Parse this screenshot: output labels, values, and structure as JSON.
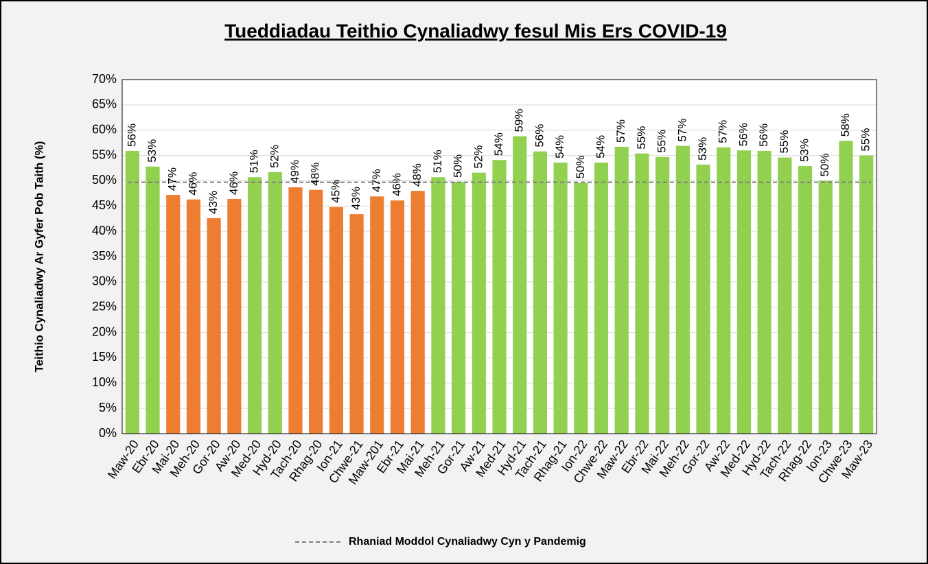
{
  "chart_data": {
    "type": "bar",
    "title": "Tueddiadau Teithio Cynaliadwy fesul Mis Ers COVID-19",
    "y_axis_label": "Teithio Cynaliadwy Ar Gyfer Pob Taith (%)",
    "categories": [
      "Maw-20",
      "Ebr-20",
      "Mai-20",
      "Meh-20",
      "Gor-20",
      "Aw-20",
      "Med-20",
      "Hyd-20",
      "Tach-20",
      "Rhag-20",
      "Ion-21",
      "Chwe-21",
      "Maw-201",
      "Ebr-21",
      "Mai-21",
      "Meh-21",
      "Gor-21",
      "Aw-21",
      "Med-21",
      "Hyd-21",
      "Tach-21",
      "Rhag-21",
      "Ion-22",
      "Chwe-22",
      "Maw-22",
      "Ebr-22",
      "Mai-22",
      "Meh-22",
      "Gor-22",
      "Aw-22",
      "Med-22",
      "Hyd-22",
      "Tach-22",
      "Rhag-22",
      "Ion-23",
      "Chwe-23",
      "Maw-23"
    ],
    "values": [
      55.9,
      52.8,
      47.2,
      46.3,
      42.6,
      46.4,
      50.7,
      51.7,
      48.7,
      48.2,
      44.8,
      43.4,
      46.9,
      46.1,
      48.0,
      50.7,
      49.8,
      51.6,
      54.1,
      58.8,
      55.8,
      53.6,
      49.6,
      53.6,
      56.7,
      55.4,
      54.7,
      56.9,
      53.2,
      56.6,
      56.0,
      55.9,
      54.6,
      52.9,
      50.0,
      57.9,
      55.0
    ],
    "value_labels": [
      "56%",
      "53%",
      "47%",
      "46%",
      "43%",
      "46%",
      "51%",
      "52%",
      "49%",
      "48%",
      "45%",
      "43%",
      "47%",
      "46%",
      "48%",
      "51%",
      "50%",
      "52%",
      "54%",
      "59%",
      "56%",
      "54%",
      "50%",
      "54%",
      "57%",
      "55%",
      "55%",
      "57%",
      "53%",
      "57%",
      "56%",
      "56%",
      "55%",
      "53%",
      "50%",
      "58%",
      "55%"
    ],
    "colors": [
      "#92d050",
      "#92d050",
      "#ed7d31",
      "#ed7d31",
      "#ed7d31",
      "#ed7d31",
      "#92d050",
      "#92d050",
      "#ed7d31",
      "#ed7d31",
      "#ed7d31",
      "#ed7d31",
      "#ed7d31",
      "#ed7d31",
      "#ed7d31",
      "#92d050",
      "#92d050",
      "#92d050",
      "#92d050",
      "#92d050",
      "#92d050",
      "#92d050",
      "#92d050",
      "#92d050",
      "#92d050",
      "#92d050",
      "#92d050",
      "#92d050",
      "#92d050",
      "#92d050",
      "#92d050",
      "#92d050",
      "#92d050",
      "#92d050",
      "#92d050",
      "#92d050",
      "#92d050"
    ],
    "reference_line": {
      "value": 49.7,
      "label": "Rhaniad Moddol Cynaliadwy Cyn y Pandemig",
      "color": "#7f7f7f"
    },
    "ylim": [
      0,
      70
    ],
    "yticks": [
      {
        "value": 0,
        "label": "0%"
      },
      {
        "value": 5,
        "label": "5%"
      },
      {
        "value": 10,
        "label": "10%"
      },
      {
        "value": 15,
        "label": "15%"
      },
      {
        "value": 20,
        "label": "20%"
      },
      {
        "value": 25,
        "label": "25%"
      },
      {
        "value": 30,
        "label": "30%"
      },
      {
        "value": 35,
        "label": "35%"
      },
      {
        "value": 40,
        "label": "40%"
      },
      {
        "value": 45,
        "label": "45%"
      },
      {
        "value": 50,
        "label": "50%"
      },
      {
        "value": 55,
        "label": "55%"
      },
      {
        "value": 60,
        "label": "60%"
      },
      {
        "value": 65,
        "label": "65%"
      },
      {
        "value": 70,
        "label": "70%"
      }
    ],
    "grid": true
  }
}
